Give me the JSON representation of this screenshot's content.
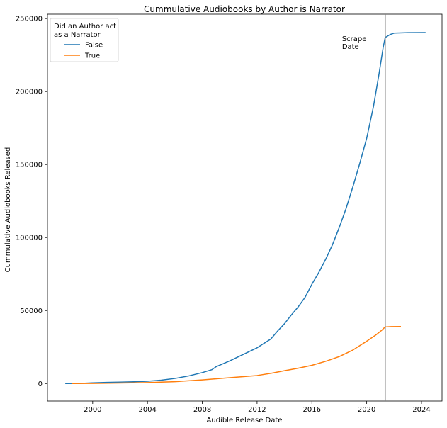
{
  "chart_data": {
    "type": "line",
    "title": "Cummulative Audiobooks by Author is Narrator",
    "xlabel": "Audible Release Date",
    "ylabel": "Cummulative Audiobooks Released",
    "xlim": [
      1996.7,
      2025.5
    ],
    "ylim": [
      -12000,
      253000
    ],
    "x_ticks": [
      2000,
      2004,
      2008,
      2012,
      2016,
      2020,
      2024
    ],
    "y_ticks": [
      0,
      50000,
      100000,
      150000,
      200000,
      250000
    ],
    "grid": false,
    "legend": {
      "title": "Did an Author act\n as a Narrator",
      "title_lines": [
        "Did an Author act",
        " as a Narrator"
      ],
      "placement": "top-left"
    },
    "vline": {
      "x": 2021.35,
      "color": "#808080"
    },
    "annotation": {
      "lines": [
        "Scrape",
        "Date"
      ],
      "x": 2018.2
    },
    "series": [
      {
        "name": "False",
        "color": "#1f77b4",
        "points": [
          [
            1998.0,
            0
          ],
          [
            1999.0,
            100
          ],
          [
            2000.0,
            500
          ],
          [
            2001.0,
            800
          ],
          [
            2002.0,
            1000
          ],
          [
            2003.0,
            1200
          ],
          [
            2004.0,
            1600
          ],
          [
            2005.0,
            2300
          ],
          [
            2006.0,
            3500
          ],
          [
            2007.0,
            5200
          ],
          [
            2008.0,
            7500
          ],
          [
            2008.7,
            9500
          ],
          [
            2009.0,
            11500
          ],
          [
            2010.0,
            15500
          ],
          [
            2011.0,
            20000
          ],
          [
            2012.0,
            24500
          ],
          [
            2013.0,
            30500
          ],
          [
            2013.5,
            36000
          ],
          [
            2014.0,
            41000
          ],
          [
            2014.5,
            47000
          ],
          [
            2015.0,
            52500
          ],
          [
            2015.5,
            59000
          ],
          [
            2016.0,
            68000
          ],
          [
            2016.5,
            76000
          ],
          [
            2017.0,
            85000
          ],
          [
            2017.5,
            95000
          ],
          [
            2018.0,
            107000
          ],
          [
            2018.5,
            120000
          ],
          [
            2019.0,
            135000
          ],
          [
            2019.5,
            151000
          ],
          [
            2020.0,
            168000
          ],
          [
            2020.5,
            190000
          ],
          [
            2020.9,
            212000
          ],
          [
            2021.2,
            230000
          ],
          [
            2021.35,
            237000
          ],
          [
            2021.7,
            239000
          ],
          [
            2022.0,
            240000
          ],
          [
            2023.0,
            240300
          ],
          [
            2024.3,
            240400
          ]
        ]
      },
      {
        "name": "True",
        "color": "#ff7f0e",
        "points": [
          [
            1998.5,
            0
          ],
          [
            2000.0,
            100
          ],
          [
            2002.0,
            400
          ],
          [
            2004.0,
            700
          ],
          [
            2006.0,
            1300
          ],
          [
            2008.0,
            2500
          ],
          [
            2010.0,
            4000
          ],
          [
            2012.0,
            5500
          ],
          [
            2013.0,
            7000
          ],
          [
            2014.0,
            8800
          ],
          [
            2015.0,
            10500
          ],
          [
            2016.0,
            12500
          ],
          [
            2017.0,
            15200
          ],
          [
            2018.0,
            18500
          ],
          [
            2019.0,
            23000
          ],
          [
            2020.0,
            29000
          ],
          [
            2020.7,
            33500
          ],
          [
            2021.1,
            36500
          ],
          [
            2021.35,
            38800
          ],
          [
            2021.8,
            39000
          ],
          [
            2022.5,
            39100
          ]
        ]
      }
    ]
  }
}
